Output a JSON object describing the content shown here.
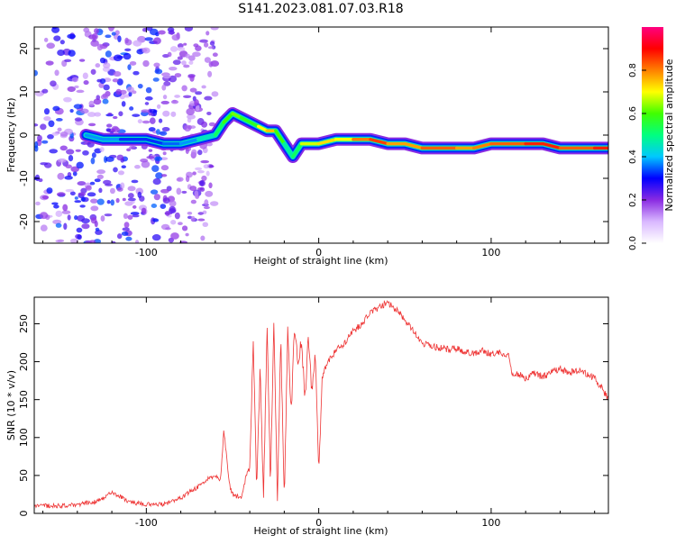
{
  "title": "S141.2023.081.07.03.R18",
  "chart_data": [
    {
      "type": "heatmap",
      "xlabel": "Height of straight line (km)",
      "ylabel": "Frequency (Hz)",
      "xlim": [
        -165,
        168
      ],
      "ylim": [
        -25,
        25
      ],
      "xticks": [
        -100,
        0,
        100
      ],
      "yticks": [
        20,
        10,
        0,
        -10,
        -20
      ],
      "colorbar": {
        "label": "Normalized spectral amplitude",
        "range": [
          0,
          1
        ],
        "ticks": [
          "0.0",
          "0.2",
          "0.4",
          "0.6",
          "0.8"
        ],
        "colors": [
          "#ffffff",
          "#d9b8ff",
          "#8a2be2",
          "#0000ff",
          "#00c8ff",
          "#00ff80",
          "#40ff00",
          "#ffff00",
          "#ff8000",
          "#ff0000",
          "#ff0080"
        ]
      },
      "ridge": {
        "x": [
          -135,
          -125,
          -115,
          -100,
          -90,
          -80,
          -70,
          -60,
          -55,
          -50,
          -45,
          -40,
          -35,
          -30,
          -25,
          -20,
          -15,
          -10,
          0,
          10,
          20,
          30,
          40,
          50,
          60,
          70,
          80,
          90,
          100,
          110,
          120,
          130,
          140,
          150,
          160,
          168
        ],
        "y": [
          0,
          -1,
          -1,
          -1,
          -2,
          -2,
          -1,
          0,
          3,
          5,
          4,
          3,
          2,
          1,
          1,
          -2,
          -5,
          -2,
          -2,
          -1,
          -1,
          -1,
          -2,
          -2,
          -3,
          -3,
          -3,
          -3,
          -2,
          -2,
          -2,
          -2,
          -3,
          -3,
          -3,
          -3
        ],
        "amplitude": [
          0.35,
          0.4,
          0.35,
          0.3,
          0.35,
          0.35,
          0.4,
          0.5,
          0.55,
          0.65,
          0.6,
          0.55,
          0.6,
          0.8,
          0.7,
          0.5,
          0.45,
          0.6,
          0.75,
          0.7,
          0.7,
          0.9,
          0.8,
          0.75,
          0.8,
          0.85,
          0.8,
          0.75,
          0.85,
          0.8,
          0.85,
          0.9,
          0.85,
          0.8,
          0.85,
          0.9
        ]
      },
      "noise_region": {
        "x": [
          -165,
          -60
        ],
        "y": [
          -25,
          25
        ],
        "amplitude": [
          0.1,
          0.35
        ]
      }
    },
    {
      "type": "line",
      "xlabel": "Height of straight line (km)",
      "ylabel": "SNR (10 * v/v)",
      "xlim": [
        -165,
        168
      ],
      "ylim": [
        0,
        285
      ],
      "xticks": [
        -100,
        0,
        100
      ],
      "yticks": [
        0,
        50,
        100,
        150,
        200,
        250
      ],
      "color": "#ee3333",
      "series": [
        {
          "x": [
            -165,
            -150,
            -140,
            -130,
            -125,
            -120,
            -115,
            -110,
            -100,
            -90,
            -80,
            -75,
            -70,
            -65,
            -60,
            -57,
            -55,
            -52,
            -50,
            -45,
            -42,
            -40,
            -38,
            -36,
            -34,
            -32,
            -30,
            -28,
            -26,
            -24,
            -22,
            -20,
            -18,
            -16,
            -14,
            -12,
            -10,
            -8,
            -6,
            -4,
            -2,
            0,
            2,
            5,
            10,
            15,
            20,
            25,
            30,
            35,
            40,
            45,
            50,
            55,
            60,
            65,
            70,
            75,
            80,
            85,
            90,
            95,
            100,
            105,
            110,
            112,
            115,
            120,
            125,
            130,
            135,
            140,
            145,
            150,
            155,
            160,
            165,
            168
          ],
          "y": [
            10,
            10,
            12,
            15,
            20,
            28,
            22,
            15,
            12,
            12,
            20,
            28,
            35,
            45,
            50,
            45,
            110,
            40,
            25,
            20,
            50,
            60,
            230,
            30,
            190,
            20,
            250,
            40,
            260,
            15,
            230,
            20,
            240,
            130,
            250,
            200,
            230,
            150,
            235,
            160,
            210,
            50,
            180,
            200,
            215,
            225,
            240,
            250,
            265,
            272,
            278,
            268,
            255,
            240,
            225,
            220,
            218,
            216,
            218,
            213,
            210,
            214,
            210,
            212,
            210,
            183,
            185,
            178,
            185,
            180,
            186,
            190,
            185,
            188,
            185,
            178,
            162,
            150
          ]
        }
      ]
    }
  ]
}
